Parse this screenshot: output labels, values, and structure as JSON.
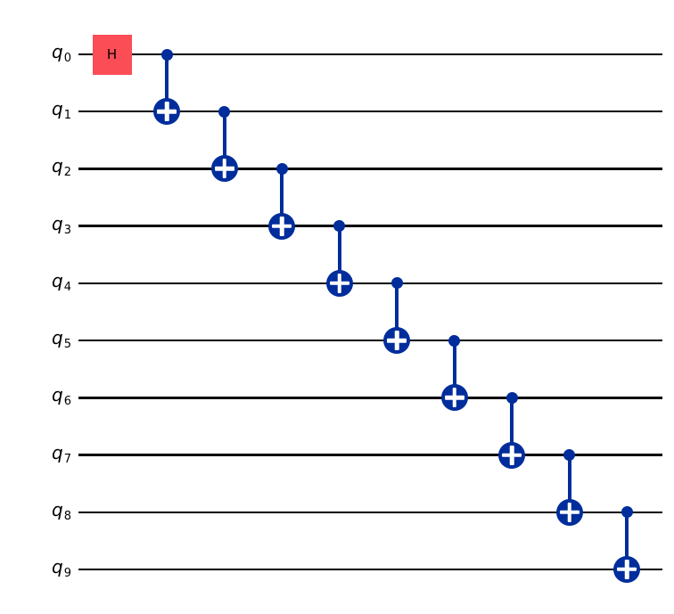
{
  "figure": {
    "kind": "quantum-circuit-diagram",
    "background": "#FFFFFF",
    "num_qubits": 10
  },
  "colors": {
    "wire": "#000000",
    "label_text": "#000000",
    "h_fill": "#FA4D56",
    "h_text": "#000000",
    "cx_fill": "#002D9C",
    "cx_symbol": "#FFFFFF"
  },
  "circuit": {
    "qubits": [
      {
        "base": "q",
        "sub": "0"
      },
      {
        "base": "q",
        "sub": "1"
      },
      {
        "base": "q",
        "sub": "2"
      },
      {
        "base": "q",
        "sub": "3"
      },
      {
        "base": "q",
        "sub": "4"
      },
      {
        "base": "q",
        "sub": "5"
      },
      {
        "base": "q",
        "sub": "6"
      },
      {
        "base": "q",
        "sub": "7"
      },
      {
        "base": "q",
        "sub": "8"
      },
      {
        "base": "q",
        "sub": "9"
      }
    ],
    "gates": [
      {
        "type": "h",
        "label": "H",
        "qubit": 0
      },
      {
        "type": "cx",
        "control": 0,
        "target": 1
      },
      {
        "type": "cx",
        "control": 1,
        "target": 2
      },
      {
        "type": "cx",
        "control": 2,
        "target": 3
      },
      {
        "type": "cx",
        "control": 3,
        "target": 4
      },
      {
        "type": "cx",
        "control": 4,
        "target": 5
      },
      {
        "type": "cx",
        "control": 5,
        "target": 6
      },
      {
        "type": "cx",
        "control": 6,
        "target": 7
      },
      {
        "type": "cx",
        "control": 7,
        "target": 8
      },
      {
        "type": "cx",
        "control": 8,
        "target": 9
      }
    ]
  }
}
